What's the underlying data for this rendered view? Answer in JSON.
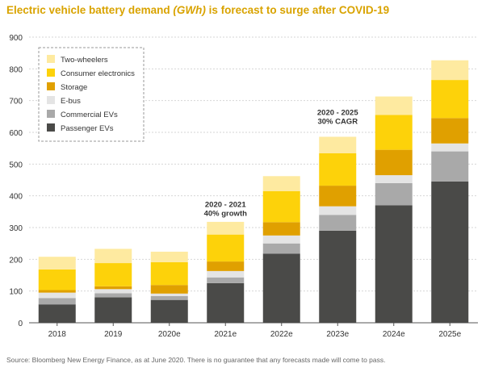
{
  "title": {
    "prefix": "Electric vehicle battery demand ",
    "unit": "(GWh)",
    "suffix": " is forecast to surge after COVID-19"
  },
  "source": "Source: Bloomberg New Energy Finance, as at June 2020. There is no guarantee that any forecasts made will come to pass.",
  "chart_data": {
    "type": "bar",
    "stacked": true,
    "categories": [
      "2018",
      "2019",
      "2020e",
      "2021e",
      "2022e",
      "2023e",
      "2024e",
      "2025e"
    ],
    "series": [
      {
        "name": "Passenger EVs",
        "color": "#4a4a48",
        "values": [
          58,
          80,
          72,
          125,
          218,
          290,
          370,
          445
        ]
      },
      {
        "name": "Commercial EVs",
        "color": "#a9a9a9",
        "values": [
          20,
          13,
          12,
          18,
          32,
          50,
          70,
          95
        ]
      },
      {
        "name": "E-bus",
        "color": "#e4e4e4",
        "values": [
          17,
          13,
          8,
          20,
          25,
          27,
          25,
          25
        ]
      },
      {
        "name": "Storage",
        "color": "#e0a000",
        "values": [
          8,
          9,
          27,
          30,
          42,
          65,
          80,
          80
        ]
      },
      {
        "name": "Consumer electronics",
        "color": "#fdd20a",
        "values": [
          65,
          73,
          72,
          85,
          98,
          102,
          110,
          120
        ]
      },
      {
        "name": "Two-wheelers",
        "color": "#feeaa0",
        "values": [
          40,
          45,
          33,
          40,
          47,
          52,
          58,
          62
        ]
      }
    ],
    "ylim": [
      0,
      900
    ],
    "yticks": [
      0,
      100,
      200,
      300,
      400,
      500,
      600,
      700,
      800,
      900
    ],
    "grid": true,
    "legend": {
      "position": "top-left",
      "order": [
        "Two-wheelers",
        "Consumer electronics",
        "Storage",
        "E-bus",
        "Commercial EVs",
        "Passenger EVs"
      ]
    },
    "annotations": [
      {
        "lines": [
          "2020 - 2021",
          "40% growth"
        ],
        "x": "2021e",
        "y": 365
      },
      {
        "lines": [
          "2020 - 2025",
          "30% CAGR"
        ],
        "x": "2023e",
        "y": 655
      }
    ]
  }
}
